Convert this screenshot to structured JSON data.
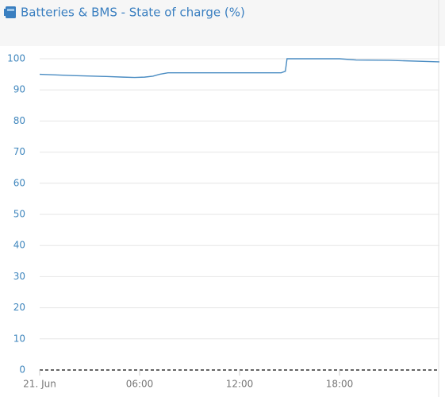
{
  "chart_data": {
    "type": "line",
    "title": "Batteries & BMS  - State of charge (%)",
    "x": [
      0,
      2,
      4,
      5,
      5.7,
      6.3,
      6.8,
      7.2,
      7.7,
      14.5,
      14.75,
      14.85,
      18,
      19,
      21,
      24
    ],
    "series": [
      {
        "name": "State of charge",
        "color": "#4a8cc2",
        "values": [
          95,
          94.6,
          94.3,
          94.1,
          94,
          94.1,
          94.4,
          95,
          95.5,
          95.5,
          96,
          100,
          100,
          99.6,
          99.5,
          99
        ]
      }
    ],
    "xlim": [
      0,
      24
    ],
    "xticks": [
      {
        "value": 0,
        "label": "21. Jun"
      },
      {
        "value": 6,
        "label": "06:00"
      },
      {
        "value": 12,
        "label": "12:00"
      },
      {
        "value": 18,
        "label": "18:00"
      }
    ],
    "ylim": [
      0,
      100
    ],
    "yticks": [
      0,
      10,
      20,
      30,
      40,
      50,
      60,
      70,
      80,
      90,
      100
    ],
    "grid": true
  }
}
